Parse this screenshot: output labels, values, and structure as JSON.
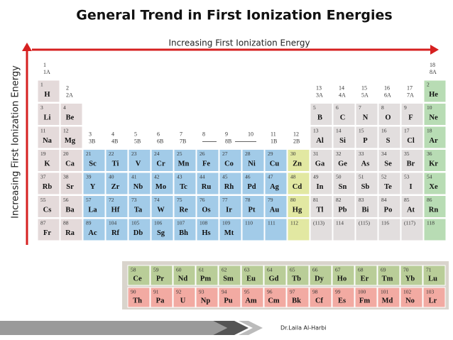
{
  "title": "General Trend in First Ionization Energies",
  "horizontal_arrow_label": "Increasing First Ionization Energy",
  "vertical_arrow_label": "Increasing First Ionization Energy",
  "groups": [
    [
      1,
      "1A"
    ],
    [
      2,
      "2A"
    ],
    [
      3,
      "3B"
    ],
    [
      4,
      "4B"
    ],
    [
      5,
      "5B"
    ],
    [
      6,
      "6B"
    ],
    [
      7,
      "7B"
    ],
    [
      8
    ],
    [
      9,
      "8B"
    ],
    [
      10
    ],
    [
      11,
      "1B"
    ],
    [
      12,
      "2B"
    ],
    [
      13,
      "3A"
    ],
    [
      14,
      "4A"
    ],
    [
      15,
      "5A"
    ],
    [
      16,
      "6A"
    ],
    [
      17,
      "7A"
    ],
    [
      18,
      "8A"
    ]
  ],
  "elements": [
    [
      1,
      "H"
    ],
    [
      2,
      "He"
    ],
    [
      3,
      "Li"
    ],
    [
      4,
      "Be"
    ],
    [
      5,
      "B"
    ],
    [
      6,
      "C"
    ],
    [
      7,
      "N"
    ],
    [
      8,
      "O"
    ],
    [
      9,
      "F"
    ],
    [
      10,
      "Ne"
    ],
    [
      11,
      "Na"
    ],
    [
      12,
      "Mg"
    ],
    [
      13,
      "Al"
    ],
    [
      14,
      "Si"
    ],
    [
      15,
      "P"
    ],
    [
      16,
      "S"
    ],
    [
      17,
      "Cl"
    ],
    [
      18,
      "Ar"
    ],
    [
      19,
      "K"
    ],
    [
      20,
      "Ca"
    ],
    [
      21,
      "Sc"
    ],
    [
      22,
      "Ti"
    ],
    [
      23,
      "V"
    ],
    [
      24,
      "Cr"
    ],
    [
      25,
      "Mn"
    ],
    [
      26,
      "Fe"
    ],
    [
      27,
      "Co"
    ],
    [
      28,
      "Ni"
    ],
    [
      29,
      "Cu"
    ],
    [
      30,
      "Zn"
    ],
    [
      31,
      "Ga"
    ],
    [
      32,
      "Ge"
    ],
    [
      33,
      "As"
    ],
    [
      34,
      "Se"
    ],
    [
      35,
      "Br"
    ],
    [
      36,
      "Kr"
    ],
    [
      37,
      "Rb"
    ],
    [
      38,
      "Sr"
    ],
    [
      39,
      "Y"
    ],
    [
      40,
      "Zr"
    ],
    [
      41,
      "Nb"
    ],
    [
      42,
      "Mo"
    ],
    [
      43,
      "Tc"
    ],
    [
      44,
      "Ru"
    ],
    [
      45,
      "Rh"
    ],
    [
      46,
      "Pd"
    ],
    [
      47,
      "Ag"
    ],
    [
      48,
      "Cd"
    ],
    [
      49,
      "In"
    ],
    [
      50,
      "Sn"
    ],
    [
      51,
      "Sb"
    ],
    [
      52,
      "Te"
    ],
    [
      53,
      "I"
    ],
    [
      54,
      "Xe"
    ],
    [
      55,
      "Cs"
    ],
    [
      56,
      "Ba"
    ],
    [
      57,
      "La"
    ],
    [
      58,
      "Ce"
    ],
    [
      59,
      "Pr"
    ],
    [
      60,
      "Nd"
    ],
    [
      61,
      "Pm"
    ],
    [
      62,
      "Sm"
    ],
    [
      63,
      "Eu"
    ],
    [
      64,
      "Gd"
    ],
    [
      65,
      "Tb"
    ],
    [
      66,
      "Dy"
    ],
    [
      67,
      "Ho"
    ],
    [
      68,
      "Er"
    ],
    [
      69,
      "Tm"
    ],
    [
      70,
      "Yb"
    ],
    [
      71,
      "Lu"
    ],
    [
      72,
      "Hf"
    ],
    [
      73,
      "Ta"
    ],
    [
      74,
      "W"
    ],
    [
      75,
      "Re"
    ],
    [
      76,
      "Os"
    ],
    [
      77,
      "Ir"
    ],
    [
      78,
      "Pt"
    ],
    [
      79,
      "Au"
    ],
    [
      80,
      "Hg"
    ],
    [
      81,
      "Tl"
    ],
    [
      82,
      "Pb"
    ],
    [
      83,
      "Bi"
    ],
    [
      84,
      "Po"
    ],
    [
      85,
      "At"
    ],
    [
      86,
      "Rn"
    ],
    [
      87,
      "Fr"
    ],
    [
      88,
      "Ra"
    ],
    [
      89,
      "Ac"
    ],
    [
      90,
      "Th"
    ],
    [
      91,
      "Pa"
    ],
    [
      92,
      "U"
    ],
    [
      93,
      "Np"
    ],
    [
      94,
      "Pu"
    ],
    [
      95,
      "Am"
    ],
    [
      96,
      "Cm"
    ],
    [
      97,
      "Bk"
    ],
    [
      98,
      "Cf"
    ],
    [
      99,
      "Es"
    ],
    [
      100,
      "Fm"
    ],
    [
      101,
      "Md"
    ],
    [
      102,
      "No"
    ],
    [
      103,
      "Lr"
    ],
    [
      104,
      "Rf"
    ],
    [
      105,
      "Db"
    ],
    [
      106,
      "Sg"
    ],
    [
      107,
      "Bh"
    ],
    [
      108,
      "Hs"
    ],
    [
      109,
      "Mt"
    ],
    [
      110
    ],
    [
      111
    ],
    [
      112
    ],
    [
      "(113)"
    ],
    [
      114
    ],
    [
      "(115)"
    ],
    [
      116
    ],
    [
      "(117)"
    ],
    [
      118
    ]
  ],
  "footer": "Dr.Laila Al-Harbi"
}
